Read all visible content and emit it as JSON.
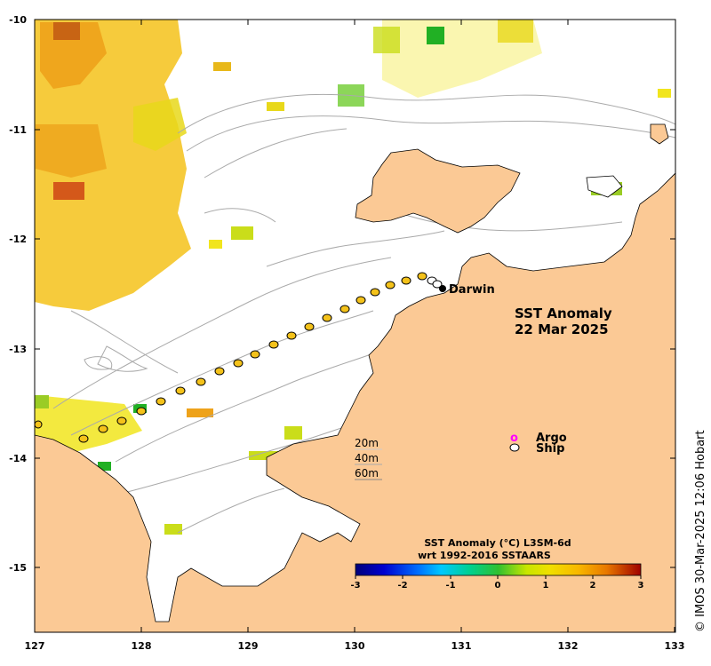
{
  "map": {
    "title_line1": "SST Anomaly",
    "title_line2": "22 Mar 2025",
    "lon_ticks": [
      "127",
      "128",
      "129",
      "130",
      "131",
      "132",
      "133"
    ],
    "lat_ticks": [
      "-10",
      "-11",
      "-12",
      "-13",
      "-14",
      "-15"
    ],
    "place_label": "Darwin",
    "land_color": "#fbc995",
    "sea_color": "#ffffff"
  },
  "legend": {
    "argo_label": "Argo",
    "ship_label": "Ship",
    "argo_symbol": "o",
    "argo_color": "#ff00ff"
  },
  "depth_labels": [
    "20m",
    "40m",
    "60m"
  ],
  "colorbar": {
    "title_line1": "SST Anomaly (°C) L3SM-6d",
    "title_line2": "wrt 1992-2016 SSTAARS",
    "ticks": [
      "-3",
      "-2",
      "-1",
      "0",
      "1",
      "2",
      "3"
    ]
  },
  "credit": "© IMOS 30-Mar-2025 12:06 Hobart"
}
